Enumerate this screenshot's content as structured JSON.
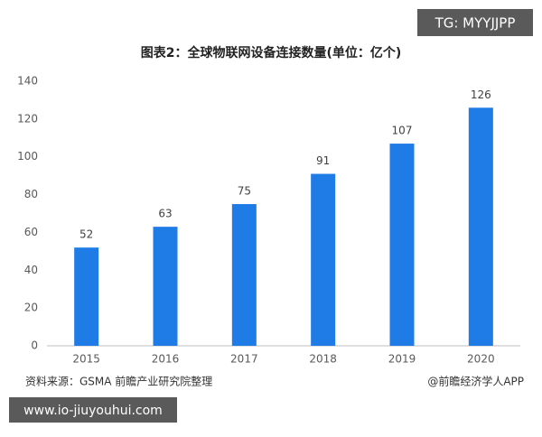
{
  "chart_data": {
    "type": "bar",
    "title": "图表2：全球物联网设备连接数量(单位：亿个)",
    "categories": [
      "2015",
      "2016",
      "2017",
      "2018",
      "2019",
      "2020"
    ],
    "values": [
      52,
      63,
      75,
      91,
      107,
      126
    ],
    "color": "#1f7be6",
    "ylim": [
      0,
      140
    ],
    "yticks": [
      0,
      20,
      40,
      60,
      80,
      100,
      120,
      140
    ],
    "grid": false,
    "source": "资料来源：GSMA 前瞻产业研究院整理",
    "credit": "@前瞻经济学人APP"
  },
  "overlays": {
    "top_banner": "TG: MYYJJPP",
    "bottom_banner": "www.io-jiuyouhui.com"
  }
}
